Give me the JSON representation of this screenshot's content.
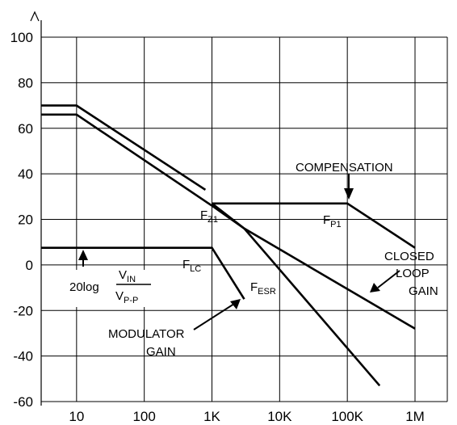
{
  "chart_data": {
    "type": "line",
    "title": "",
    "xlabel": "",
    "ylabel": "",
    "x_scale": "log",
    "xlim": [
      3,
      3000000
    ],
    "ylim": [
      -60,
      100
    ],
    "grid": true,
    "x_ticks": [
      10,
      100,
      1000,
      10000,
      100000,
      1000000
    ],
    "x_tick_labels": [
      "10",
      "100",
      "1K",
      "10K",
      "100K",
      "1M"
    ],
    "y_ticks": [
      100,
      80,
      60,
      40,
      20,
      0,
      -20,
      -40,
      -60
    ],
    "y_tick_labels": [
      "100",
      "80",
      "60",
      "40",
      "20",
      "0",
      "-20",
      "-40",
      "-60"
    ],
    "series": [
      {
        "x": [
          3,
          10,
          800
        ],
        "y": [
          70,
          70,
          33
        ]
      },
      {
        "x": [
          3,
          10,
          1000,
          3000,
          300000
        ],
        "y": [
          66,
          66,
          26,
          16,
          -53
        ]
      },
      {
        "x": [
          1000,
          100000,
          1000000
        ],
        "y": [
          27,
          27,
          7.5
        ]
      },
      {
        "x": [
          1000,
          3000,
          1000000
        ],
        "y": [
          27,
          16,
          -28
        ]
      },
      {
        "x": [
          3,
          1000,
          3000
        ],
        "y": [
          7.5,
          7.5,
          -15
        ]
      }
    ]
  },
  "annotations": {
    "compensation": "COMPENSATION",
    "fz1_main": "F",
    "fz1_sub": "Z1",
    "fp1_main": "F",
    "fp1_sub": "P1",
    "flc_main": "F",
    "flc_sub": "LC",
    "fesr_main": "F",
    "fesr_sub": "ESR",
    "closed_line1": "CLOSED",
    "closed_line2": "LOOP",
    "closed_line3": "GAIN",
    "modulator_line1": "MODULATOR",
    "modulator_line2": "GAIN",
    "formula_prefix": "20log",
    "formula_num_main": "V",
    "formula_num_sub": "IN",
    "formula_den_main": "V",
    "formula_den_sub": "P-P"
  }
}
